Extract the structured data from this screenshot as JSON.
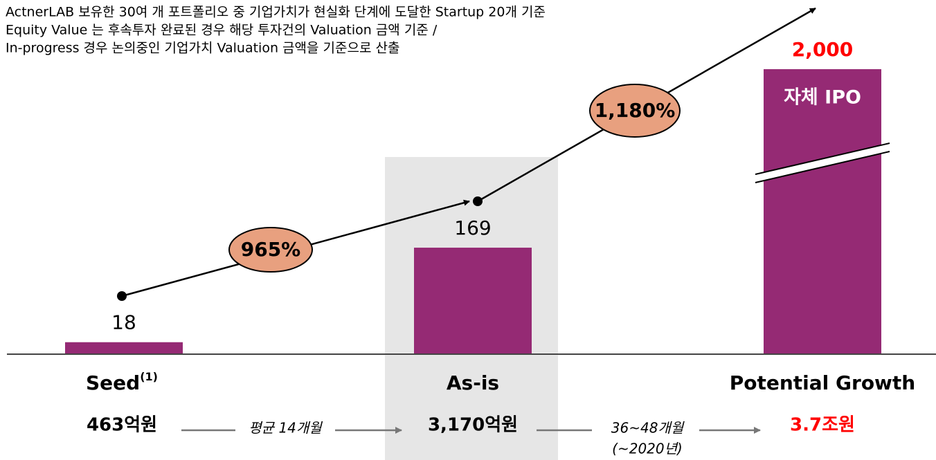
{
  "chart_data": {
    "type": "bar",
    "notes": [
      "ActnerLAB 보유한 30여 개 포트폴리오 중 기업가치가 현실화 단계에 도달한 Startup 20개 기준",
      "Equity Value 는 후속투자 완료된 경우 해당 투자건의 Valuation 금액 기준 /",
      "In-progress 경우 논의중인 기업가치 Valuation 금액을 기준으로 산출"
    ],
    "categories": [
      "Seed",
      "As-is",
      "Potential Growth"
    ],
    "category_superscript": "(1)",
    "values": [
      18,
      169,
      2000
    ],
    "value_labels": [
      "18",
      "169",
      "2,000"
    ],
    "color": "#952a74",
    "highlight_color": "#ff0000",
    "totals": [
      "463억원",
      "3,170억원",
      "3.7조원"
    ],
    "growth_labels": [
      "965%",
      "1,180%"
    ],
    "growth_color": "#e8a07f",
    "durations": [
      "평균 14개월",
      "36~48개월"
    ],
    "duration_note": "(~2020년)",
    "bar_annotation": "자체 IPO"
  }
}
